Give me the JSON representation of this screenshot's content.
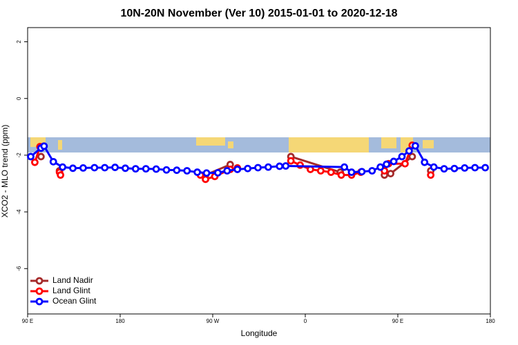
{
  "chart_data": {
    "type": "line",
    "title": "10N-20N November (Ver 10)   2015-01-01 to 2020-12-18",
    "xlabel": "Longitude",
    "ylabel": "XCO2 - MLO trend (ppm)",
    "xlim": [
      90,
      540
    ],
    "ylim": [
      -7.6,
      2.5
    ],
    "xticks": [
      {
        "value": 90,
        "label": "90 E"
      },
      {
        "value": 180,
        "label": "180"
      },
      {
        "value": 270,
        "label": "90 W"
      },
      {
        "value": 360,
        "label": "0"
      },
      {
        "value": 450,
        "label": "90 E"
      },
      {
        "value": 540,
        "label": "180"
      }
    ],
    "yticks": [
      2,
      0,
      -2,
      -4,
      -6
    ],
    "legend": "bottom-left",
    "series": [
      {
        "name": "Land Nadir",
        "color": "#a52a2a",
        "x": [
          103,
          null,
          121,
          null,
          263,
          287,
          null,
          346,
          394,
          null,
          437,
          443,
          464,
          null,
          482
        ],
        "values": [
          -2.05,
          null,
          -2.55,
          null,
          -2.7,
          -2.33,
          null,
          -2.05,
          -2.6,
          null,
          -2.7,
          -2.65,
          -2.05,
          null,
          -2.55
        ]
      },
      {
        "name": "Land Glint",
        "color": "#ff0000",
        "x": [
          97,
          102,
          null,
          121,
          122,
          null,
          258,
          263,
          272,
          287,
          294,
          null,
          346,
          355,
          365,
          375,
          385,
          395,
          405,
          414,
          null,
          437,
          441,
          457,
          464,
          null,
          482
        ],
        "values": [
          -2.25,
          -1.7,
          null,
          -2.6,
          -2.7,
          null,
          -2.7,
          -2.85,
          -2.75,
          -2.5,
          -2.45,
          null,
          -2.2,
          -2.35,
          -2.5,
          -2.55,
          -2.6,
          -2.7,
          -2.7,
          -2.6,
          null,
          -2.55,
          -2.3,
          -2.3,
          -1.65,
          null,
          -2.7
        ]
      },
      {
        "name": "Ocean Glint",
        "color": "#0000ff",
        "x": [
          93,
          103,
          106,
          115,
          124,
          134,
          144,
          155,
          165,
          175,
          185,
          195,
          205,
          215,
          225,
          235,
          245,
          255,
          264,
          275,
          284,
          294,
          304,
          314,
          324,
          335,
          341,
          398,
          405,
          415,
          425,
          433,
          439,
          446,
          454,
          461,
          467,
          476,
          485,
          495,
          505,
          515,
          525,
          535
        ],
        "values": [
          -2.05,
          -1.75,
          -1.68,
          -2.23,
          -2.42,
          -2.46,
          -2.45,
          -2.44,
          -2.44,
          -2.43,
          -2.46,
          -2.48,
          -2.48,
          -2.49,
          -2.52,
          -2.53,
          -2.55,
          -2.6,
          -2.63,
          -2.62,
          -2.55,
          -2.5,
          -2.47,
          -2.44,
          -2.42,
          -2.39,
          -2.38,
          -2.42,
          -2.6,
          -2.58,
          -2.55,
          -2.42,
          -2.32,
          -2.22,
          -2.05,
          -1.85,
          -1.67,
          -2.25,
          -2.42,
          -2.48,
          -2.47,
          -2.45,
          -2.44,
          -2.44
        ]
      }
    ]
  }
}
